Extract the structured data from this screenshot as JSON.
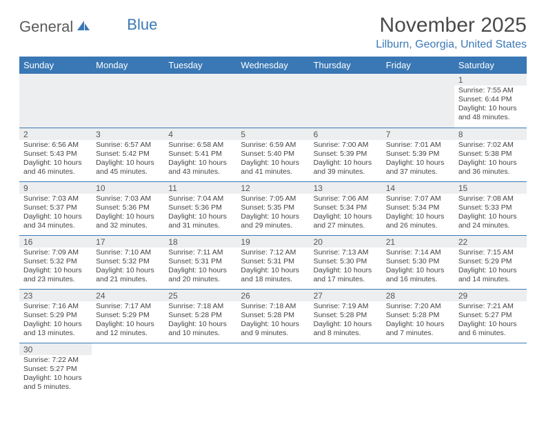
{
  "brand": {
    "text1": "General",
    "text2": "Blue"
  },
  "title": "November 2025",
  "location": "Lilburn, Georgia, United States",
  "colors": {
    "header_bg": "#3a78b5",
    "header_text": "#ffffff",
    "daynum_bg": "#eceeef",
    "border": "#3a78b5",
    "brand_gray": "#5a5a5a",
    "brand_blue": "#3a78b5"
  },
  "weekdays": [
    "Sunday",
    "Monday",
    "Tuesday",
    "Wednesday",
    "Thursday",
    "Friday",
    "Saturday"
  ],
  "weeks": [
    [
      null,
      null,
      null,
      null,
      null,
      null,
      {
        "n": "1",
        "sr": "7:55 AM",
        "ss": "6:44 PM",
        "dl": "10 hours and 48 minutes."
      }
    ],
    [
      {
        "n": "2",
        "sr": "6:56 AM",
        "ss": "5:43 PM",
        "dl": "10 hours and 46 minutes."
      },
      {
        "n": "3",
        "sr": "6:57 AM",
        "ss": "5:42 PM",
        "dl": "10 hours and 45 minutes."
      },
      {
        "n": "4",
        "sr": "6:58 AM",
        "ss": "5:41 PM",
        "dl": "10 hours and 43 minutes."
      },
      {
        "n": "5",
        "sr": "6:59 AM",
        "ss": "5:40 PM",
        "dl": "10 hours and 41 minutes."
      },
      {
        "n": "6",
        "sr": "7:00 AM",
        "ss": "5:39 PM",
        "dl": "10 hours and 39 minutes."
      },
      {
        "n": "7",
        "sr": "7:01 AM",
        "ss": "5:39 PM",
        "dl": "10 hours and 37 minutes."
      },
      {
        "n": "8",
        "sr": "7:02 AM",
        "ss": "5:38 PM",
        "dl": "10 hours and 36 minutes."
      }
    ],
    [
      {
        "n": "9",
        "sr": "7:03 AM",
        "ss": "5:37 PM",
        "dl": "10 hours and 34 minutes."
      },
      {
        "n": "10",
        "sr": "7:03 AM",
        "ss": "5:36 PM",
        "dl": "10 hours and 32 minutes."
      },
      {
        "n": "11",
        "sr": "7:04 AM",
        "ss": "5:36 PM",
        "dl": "10 hours and 31 minutes."
      },
      {
        "n": "12",
        "sr": "7:05 AM",
        "ss": "5:35 PM",
        "dl": "10 hours and 29 minutes."
      },
      {
        "n": "13",
        "sr": "7:06 AM",
        "ss": "5:34 PM",
        "dl": "10 hours and 27 minutes."
      },
      {
        "n": "14",
        "sr": "7:07 AM",
        "ss": "5:34 PM",
        "dl": "10 hours and 26 minutes."
      },
      {
        "n": "15",
        "sr": "7:08 AM",
        "ss": "5:33 PM",
        "dl": "10 hours and 24 minutes."
      }
    ],
    [
      {
        "n": "16",
        "sr": "7:09 AM",
        "ss": "5:32 PM",
        "dl": "10 hours and 23 minutes."
      },
      {
        "n": "17",
        "sr": "7:10 AM",
        "ss": "5:32 PM",
        "dl": "10 hours and 21 minutes."
      },
      {
        "n": "18",
        "sr": "7:11 AM",
        "ss": "5:31 PM",
        "dl": "10 hours and 20 minutes."
      },
      {
        "n": "19",
        "sr": "7:12 AM",
        "ss": "5:31 PM",
        "dl": "10 hours and 18 minutes."
      },
      {
        "n": "20",
        "sr": "7:13 AM",
        "ss": "5:30 PM",
        "dl": "10 hours and 17 minutes."
      },
      {
        "n": "21",
        "sr": "7:14 AM",
        "ss": "5:30 PM",
        "dl": "10 hours and 16 minutes."
      },
      {
        "n": "22",
        "sr": "7:15 AM",
        "ss": "5:29 PM",
        "dl": "10 hours and 14 minutes."
      }
    ],
    [
      {
        "n": "23",
        "sr": "7:16 AM",
        "ss": "5:29 PM",
        "dl": "10 hours and 13 minutes."
      },
      {
        "n": "24",
        "sr": "7:17 AM",
        "ss": "5:29 PM",
        "dl": "10 hours and 12 minutes."
      },
      {
        "n": "25",
        "sr": "7:18 AM",
        "ss": "5:28 PM",
        "dl": "10 hours and 10 minutes."
      },
      {
        "n": "26",
        "sr": "7:18 AM",
        "ss": "5:28 PM",
        "dl": "10 hours and 9 minutes."
      },
      {
        "n": "27",
        "sr": "7:19 AM",
        "ss": "5:28 PM",
        "dl": "10 hours and 8 minutes."
      },
      {
        "n": "28",
        "sr": "7:20 AM",
        "ss": "5:28 PM",
        "dl": "10 hours and 7 minutes."
      },
      {
        "n": "29",
        "sr": "7:21 AM",
        "ss": "5:27 PM",
        "dl": "10 hours and 6 minutes."
      }
    ],
    [
      {
        "n": "30",
        "sr": "7:22 AM",
        "ss": "5:27 PM",
        "dl": "10 hours and 5 minutes."
      },
      null,
      null,
      null,
      null,
      null,
      null
    ]
  ],
  "labels": {
    "sunrise": "Sunrise:",
    "sunset": "Sunset:",
    "daylight": "Daylight:"
  }
}
